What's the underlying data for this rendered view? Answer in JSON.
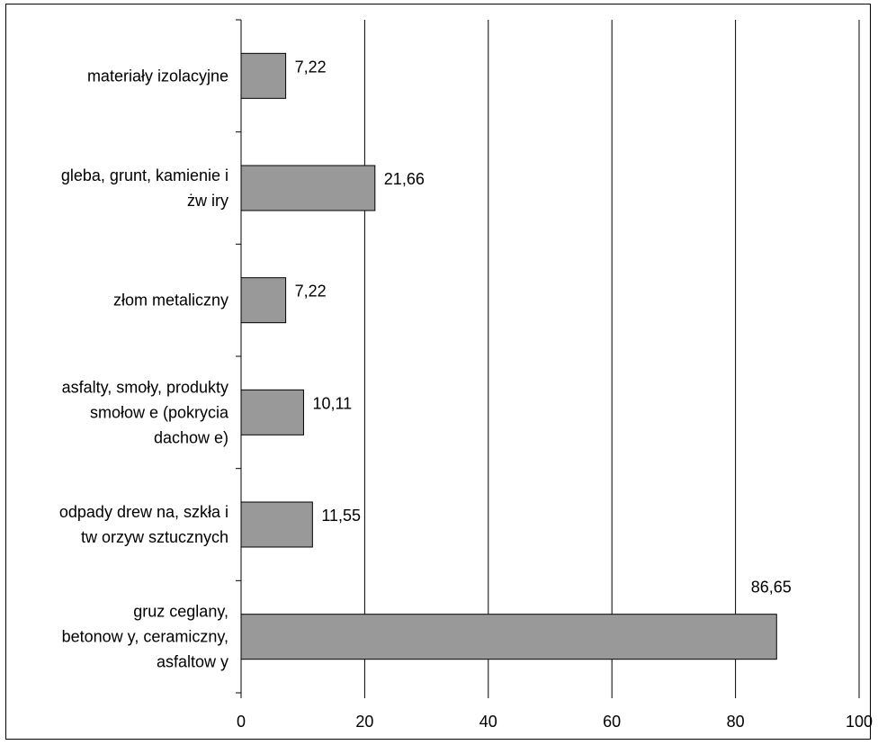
{
  "chart_data": {
    "type": "bar",
    "orientation": "horizontal",
    "categories": [
      [
        "materiały izolacyjne"
      ],
      [
        "gleba, grunt, kamienie i",
        "żw iry"
      ],
      [
        "złom metaliczny"
      ],
      [
        "asfalty, smoły, produkty",
        "smołow e (pokrycia",
        "dachow e)"
      ],
      [
        "odpady drew na, szkła i",
        "tw orzyw sztucznych"
      ],
      [
        "gruz ceglany,",
        "betonow y, ceramiczny,",
        "asfaltow y"
      ]
    ],
    "values": [
      7.22,
      21.66,
      7.22,
      10.11,
      11.55,
      86.65
    ],
    "value_labels": [
      "7,22",
      "21,66",
      "7,22",
      "10,11",
      "11,55",
      "86,65"
    ],
    "xlim": [
      0,
      100
    ],
    "xticks": [
      0,
      20,
      40,
      60,
      80,
      100
    ],
    "xtick_labels": [
      "0",
      "20",
      "40",
      "60",
      "80",
      "100"
    ],
    "grid": "vertical",
    "colors": {
      "bar": "#999999",
      "bar_border": "#000000",
      "grid": "#000000"
    }
  }
}
